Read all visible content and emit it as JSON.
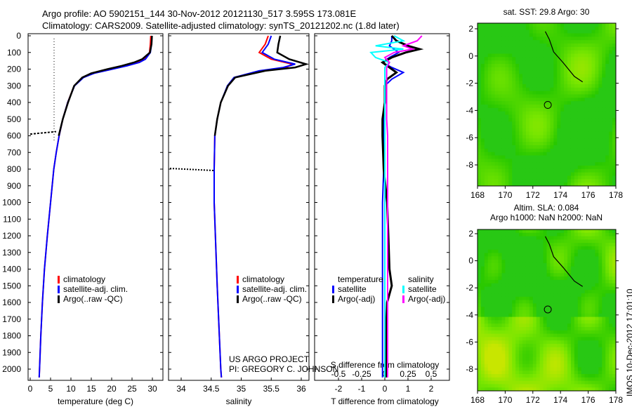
{
  "title": {
    "line1": "Argo profile: AO 5902151_144 30-Nov-2012 20121130_517 3.595S 173.081E",
    "line2": "Climatology: CARS2009. Satellite-adjusted climatology: synTS_20121202.nc (1.8d later)"
  },
  "credit": {
    "line1": "US ARGO PROJECT",
    "line2": "PI: GREGORY C. JOHNSON"
  },
  "timestamp": "IMOS 10-Dec-2012 17:01:10",
  "colors": {
    "climatology": "#ff0000",
    "satellite": "#0000ff",
    "argo": "#000000",
    "sal_satellite": "#00ffff",
    "sal_argo": "#ff00ff"
  },
  "chart_data": [
    {
      "type": "line",
      "name": "temperature",
      "xlabel": "temperature (deg C)",
      "ylabel": "",
      "xlim": [
        -2,
        31
      ],
      "ylim": [
        2050,
        0
      ],
      "xticks": [
        0,
        5,
        10,
        15,
        20,
        25,
        30
      ],
      "yticks": [
        0,
        100,
        200,
        300,
        400,
        500,
        600,
        700,
        800,
        900,
        1000,
        1100,
        1200,
        1300,
        1400,
        1500,
        1600,
        1700,
        1800,
        1900,
        2000
      ],
      "legend": [
        "climatology",
        "satellite-adj. clim.",
        "Argo(..raw -QC)"
      ],
      "depth": [
        0,
        50,
        100,
        140,
        160,
        180,
        200,
        225,
        250,
        300,
        400,
        500,
        600,
        700,
        800,
        1000,
        1200,
        1400,
        1600,
        1800,
        2000,
        2050
      ],
      "series": [
        {
          "name": "climatology",
          "values": [
            29.6,
            29.5,
            29.3,
            28.0,
            26.5,
            23.5,
            20.0,
            15.5,
            13.0,
            10.8,
            9.2,
            8.0,
            7.1,
            6.4,
            5.8,
            5.0,
            4.2,
            3.5,
            3.0,
            2.6,
            2.3,
            2.2
          ]
        },
        {
          "name": "satellite-adj. clim.",
          "values": [
            29.9,
            29.8,
            29.5,
            28.3,
            26.8,
            23.8,
            20.2,
            15.7,
            13.1,
            10.9,
            9.2,
            8.0,
            7.1,
            6.4,
            5.8,
            5.0,
            4.2,
            3.5,
            3.0,
            2.6,
            2.3,
            2.2
          ]
        },
        {
          "name": "Argo(..raw -QC)",
          "values": [
            29.9,
            29.8,
            29.4,
            27.5,
            25.5,
            22.5,
            19.0,
            15.0,
            12.8,
            10.8,
            9.3,
            8.0,
            7.0,
            null,
            null,
            null,
            null,
            null,
            null,
            null,
            null,
            null
          ]
        }
      ]
    },
    {
      "type": "line",
      "name": "salinity",
      "xlabel": "salinity",
      "xlim": [
        33.7,
        36.1
      ],
      "ylim": [
        2050,
        0
      ],
      "xticks": [
        34,
        34.5,
        35,
        35.5,
        36
      ],
      "legend": [
        "climatology",
        "satellite-adj. clim.",
        "Argo(..raw -QC)"
      ],
      "depth": [
        0,
        50,
        100,
        140,
        170,
        190,
        210,
        250,
        300,
        400,
        500,
        600,
        800,
        1000,
        1500,
        2000,
        2050
      ],
      "series": [
        {
          "name": "climatology",
          "values": [
            35.45,
            35.4,
            35.3,
            35.5,
            35.85,
            35.75,
            35.35,
            34.9,
            34.78,
            34.66,
            34.6,
            34.56,
            34.55,
            34.55,
            34.6,
            34.66,
            34.67
          ]
        },
        {
          "name": "satellite-adj. clim.",
          "values": [
            35.5,
            35.45,
            35.35,
            35.55,
            35.9,
            35.7,
            35.3,
            34.88,
            34.77,
            34.66,
            34.6,
            34.56,
            34.55,
            34.55,
            34.6,
            34.66,
            34.67
          ]
        },
        {
          "name": "Argo(..raw -QC)",
          "values": [
            35.65,
            35.62,
            35.6,
            35.8,
            36.08,
            35.9,
            35.4,
            34.9,
            34.78,
            34.66,
            34.6,
            34.56,
            null,
            null,
            null,
            null,
            null
          ]
        }
      ]
    },
    {
      "type": "line",
      "name": "difference",
      "xlabel": "T difference from climatology",
      "x2label": "S difference from climatology",
      "xlim": [
        -3,
        3
      ],
      "xticks": [
        -2,
        -1,
        0,
        1,
        2
      ],
      "x2ticks": [
        -0.5,
        -0.25,
        0,
        0.25,
        0.5
      ],
      "legend_titles": [
        "temperature",
        "salinity"
      ],
      "legend": [
        "satellite",
        "Argo(-adj)",
        "satellite",
        "Argo(-adj)"
      ],
      "depth": [
        0,
        30,
        60,
        80,
        100,
        130,
        160,
        190,
        220,
        260,
        300,
        400,
        500,
        600,
        800,
        1000,
        1200,
        1400,
        1500,
        1600,
        1800,
        2000,
        2050
      ],
      "series": [
        {
          "name": "T satellite",
          "values": [
            0.3,
            0.3,
            0.2,
            0.4,
            0.6,
            0.2,
            -0.1,
            0.3,
            0.8,
            0.3,
            0,
            0,
            -0.05,
            -0.05,
            -0.05,
            -0.1,
            -0.1,
            -0.1,
            -0.1,
            -0.1,
            -0.1,
            -0.1,
            -0.1
          ]
        },
        {
          "name": "T Argo(-adj)",
          "values": [
            0.3,
            0.5,
            1.0,
            1.5,
            0.9,
            0.3,
            -0.1,
            0.2,
            0.5,
            0.1,
            0,
            0,
            -0.1,
            -0.1,
            -0.05,
            0.1,
            0.15,
            0.2,
            0.3,
            0.1,
            0.05,
            0.05,
            0.05
          ]
        },
        {
          "name": "S satellite",
          "values": [
            0.1,
            0.2,
            -0.1,
            0.2,
            -0.15,
            -0.1,
            0.05,
            0,
            0,
            0,
            0,
            0,
            0,
            0,
            0,
            0,
            0,
            0,
            0,
            0,
            0,
            0,
            0
          ]
        },
        {
          "name": "S Argo(-adj)",
          "values": [
            0.4,
            0.35,
            0.2,
            0.3,
            0.1,
            0,
            0.05,
            0.02,
            0.02,
            0.02,
            0.02,
            0.02,
            0.02,
            0.03,
            0.03,
            0.03,
            0.03,
            0.03,
            0.03,
            0.03,
            0.03,
            0.03,
            0.03
          ]
        }
      ]
    },
    {
      "type": "heatmap",
      "name": "sst-map",
      "title": "sat. SST: 29.8 Argo: 30",
      "xticks": [
        168,
        170,
        172,
        174,
        176,
        178
      ],
      "yticks": [
        2,
        0,
        -2,
        -4,
        -6,
        -8
      ],
      "xlim": [
        168,
        178
      ],
      "ylim": [
        -9.5,
        2.3
      ],
      "argo_position": [
        173.081,
        -3.595
      ]
    },
    {
      "type": "heatmap",
      "name": "sla-map",
      "title": "Altim. SLA: 0.084",
      "subtitle": "Argo h1000: NaN h2000: NaN",
      "xticks": [
        168,
        170,
        172,
        174,
        176,
        178
      ],
      "yticks": [
        2,
        0,
        -2,
        -4,
        -6,
        -8
      ],
      "xlim": [
        168,
        178
      ],
      "ylim": [
        -9.5,
        2.3
      ],
      "argo_position": [
        173.081,
        -3.595
      ]
    }
  ]
}
